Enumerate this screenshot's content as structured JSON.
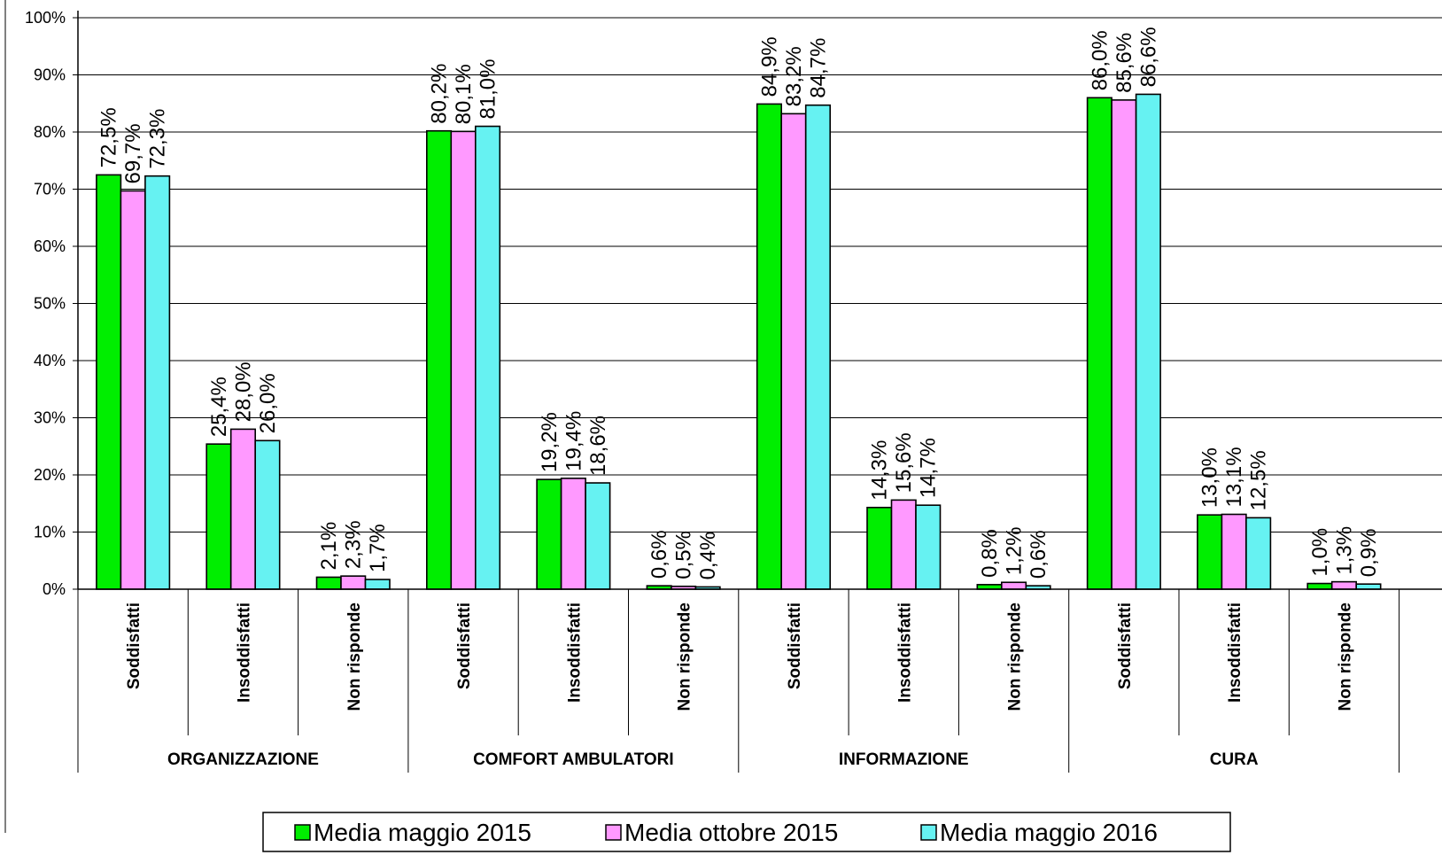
{
  "chart_data": {
    "type": "bar",
    "title": "",
    "ylim": [
      0,
      100
    ],
    "yticks": [
      "0%",
      "10%",
      "20%",
      "30%",
      "40%",
      "50%",
      "60%",
      "70%",
      "80%",
      "90%",
      "100%"
    ],
    "grid": true,
    "legend_position": "bottom",
    "groups": [
      "ORGANIZZAZIONE",
      "COMFORT AMBULATORI",
      "INFORMAZIONE",
      "CURA"
    ],
    "categories": [
      "Soddisfatti",
      "Insoddisfatti",
      "Non risponde",
      "Soddisfatti",
      "Insoddisfatti",
      "Non risponde",
      "Soddisfatti",
      "Insoddisfatti",
      "Non risponde",
      "Soddisfatti",
      "Insoddisfatti",
      "Non risponde"
    ],
    "series": [
      {
        "name": "Media maggio 2015",
        "color": "#00ee00",
        "values": [
          72.5,
          25.4,
          2.1,
          80.2,
          19.2,
          0.6,
          84.9,
          14.3,
          0.8,
          86.0,
          13.0,
          1.0
        ],
        "labels": [
          "72,5%",
          "25,4%",
          "2,1%",
          "80,2%",
          "19,2%",
          "0,6%",
          "84,9%",
          "14,3%",
          "0,8%",
          "86,0%",
          "13,0%",
          "1,0%"
        ]
      },
      {
        "name": "Media ottobre 2015",
        "color": "#ff99ff",
        "values": [
          69.7,
          28.0,
          2.3,
          80.1,
          19.4,
          0.5,
          83.2,
          15.6,
          1.2,
          85.6,
          13.1,
          1.3
        ],
        "labels": [
          "69,7%",
          "28,0%",
          "2,3%",
          "80,1%",
          "19,4%",
          "0,5%",
          "83,2%",
          "15,6%",
          "1,2%",
          "85,6%",
          "13,1%",
          "1,3%"
        ]
      },
      {
        "name": "Media maggio 2016",
        "color": "#66f2f2",
        "values": [
          72.3,
          26.0,
          1.7,
          81.0,
          18.6,
          0.4,
          84.7,
          14.7,
          0.6,
          86.6,
          12.5,
          0.9
        ],
        "labels": [
          "72,3%",
          "26,0%",
          "1,7%",
          "81,0%",
          "18,6%",
          "0,4%",
          "84,7%",
          "14,7%",
          "0,6%",
          "86,6%",
          "12,5%",
          "0,9%"
        ]
      }
    ]
  }
}
